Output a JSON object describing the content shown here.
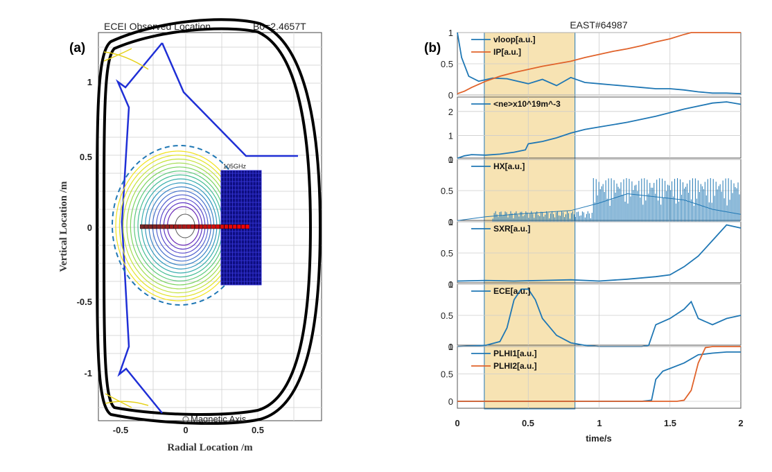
{
  "panel_a": {
    "label": "(a)",
    "title_left": "ECEI Observed Location",
    "title_right": "B0=2.4657T",
    "xlabel": "Radial Location  /m",
    "ylabel": "Vertical Location  /m",
    "xticks": [
      "-0.5",
      "0",
      "0.5"
    ],
    "yticks": [
      "1",
      "0.5",
      "0",
      "-0.5",
      "-1"
    ],
    "box_label": "105GHz",
    "annotation": "Magnetic Axis"
  },
  "panel_b": {
    "label": "(b)",
    "title": "EAST#64987",
    "xlabel": "time/s",
    "xticks": [
      "0",
      "0.5",
      "1",
      "1.5",
      "2"
    ]
  },
  "colors": {
    "blue": "#1f77b4",
    "orange": "#e0622a",
    "shade": "#f7e3b3",
    "wall_blue": "#1f2fd6"
  },
  "chart_data": [
    {
      "type": "line",
      "title": "ECEI Observed Location   B0=2.4657T",
      "xlabel": "Radial Location  /m",
      "ylabel": "Vertical Location  /m",
      "xlim": [
        -0.62,
        0.95
      ],
      "ylim": [
        -1.3,
        1.3
      ],
      "grid": true,
      "annotation": "Magnetic Axis",
      "channel_box": {
        "label": "105GHz",
        "r": [
          0.24,
          0.52
        ],
        "z": [
          -0.39,
          0.39
        ]
      }
    },
    {
      "type": "line",
      "title": "EAST#64987",
      "xlabel": "time/s",
      "xlim": [
        0,
        2
      ],
      "shaded_interval": [
        0.19,
        0.83
      ],
      "subplots": [
        {
          "ylim": [
            0,
            1
          ],
          "yticks": [
            "0",
            "0.5",
            "1"
          ],
          "series": [
            {
              "name": "vloop[a.u.]",
              "x": [
                0,
                0.03,
                0.08,
                0.15,
                0.25,
                0.35,
                0.5,
                0.6,
                0.7,
                0.8,
                0.9,
                1.0,
                1.1,
                1.2,
                1.3,
                1.4,
                1.5,
                1.6,
                1.7,
                1.8,
                1.9,
                2.0
              ],
              "y": [
                1.0,
                0.6,
                0.3,
                0.22,
                0.27,
                0.26,
                0.18,
                0.25,
                0.15,
                0.28,
                0.2,
                0.18,
                0.16,
                0.14,
                0.12,
                0.1,
                0.1,
                0.08,
                0.05,
                0.03,
                0.03,
                0.02
              ]
            },
            {
              "name": "IP[a.u.]",
              "x": [
                0,
                0.05,
                0.1,
                0.2,
                0.3,
                0.4,
                0.5,
                0.6,
                0.7,
                0.8,
                0.9,
                1.0,
                1.1,
                1.2,
                1.3,
                1.4,
                1.5,
                1.6,
                1.65,
                1.7,
                1.8,
                1.9,
                2.0
              ],
              "y": [
                0.02,
                0.06,
                0.12,
                0.22,
                0.3,
                0.36,
                0.41,
                0.46,
                0.5,
                0.54,
                0.6,
                0.65,
                0.7,
                0.74,
                0.79,
                0.85,
                0.9,
                0.97,
                1.0,
                1.0,
                1.0,
                1.0,
                1.0
              ]
            }
          ]
        },
        {
          "ylim": [
            0,
            2.4
          ],
          "yticks": [
            "0",
            "1",
            "2"
          ],
          "series": [
            {
              "name": "<ne>x10^19m^-3",
              "x": [
                0,
                0.05,
                0.1,
                0.2,
                0.3,
                0.4,
                0.48,
                0.5,
                0.55,
                0.6,
                0.7,
                0.8,
                0.9,
                1.0,
                1.2,
                1.4,
                1.6,
                1.8,
                1.9,
                2.0
              ],
              "y": [
                0.05,
                0.15,
                0.2,
                0.18,
                0.22,
                0.3,
                0.4,
                0.65,
                0.7,
                0.75,
                0.9,
                1.1,
                1.25,
                1.35,
                1.55,
                1.8,
                2.1,
                2.35,
                2.4,
                2.3
              ]
            }
          ]
        },
        {
          "ylim": [
            0,
            1
          ],
          "yticks": [
            "0",
            "0.5",
            "1"
          ],
          "series": [
            {
              "name": "HX[a.u.]",
              "x": [
                0,
                0.2,
                0.4,
                0.6,
                0.8,
                1.0,
                1.2,
                1.4,
                1.6,
                1.8,
                2.0
              ],
              "y": [
                0.02,
                0.08,
                0.12,
                0.15,
                0.18,
                0.3,
                0.45,
                0.4,
                0.35,
                0.2,
                0.12
              ]
            }
          ]
        },
        {
          "ylim": [
            0,
            1
          ],
          "yticks": [
            "0",
            "0.5",
            "1"
          ],
          "series": [
            {
              "name": "SXR[a.u.]",
              "x": [
                0,
                0.2,
                0.4,
                0.6,
                0.8,
                1.0,
                1.2,
                1.4,
                1.5,
                1.6,
                1.7,
                1.8,
                1.9,
                2.0
              ],
              "y": [
                0.05,
                0.06,
                0.05,
                0.06,
                0.07,
                0.05,
                0.08,
                0.12,
                0.15,
                0.28,
                0.45,
                0.7,
                0.95,
                0.9
              ]
            }
          ]
        },
        {
          "ylim": [
            0,
            1
          ],
          "yticks": [
            "0",
            "0.5",
            "1"
          ],
          "series": [
            {
              "name": "ECE[a.u.]",
              "x": [
                0,
                0.2,
                0.3,
                0.35,
                0.4,
                0.45,
                0.5,
                0.55,
                0.6,
                0.7,
                0.8,
                0.9,
                1.0,
                1.3,
                1.35,
                1.4,
                1.5,
                1.6,
                1.65,
                1.7,
                1.8,
                1.9,
                2.0
              ],
              "y": [
                0.0,
                0.02,
                0.08,
                0.3,
                0.75,
                0.92,
                0.92,
                0.75,
                0.45,
                0.18,
                0.06,
                0.02,
                0.0,
                0.0,
                0.02,
                0.35,
                0.45,
                0.6,
                0.72,
                0.45,
                0.35,
                0.45,
                0.5
              ]
            }
          ]
        },
        {
          "ylim": [
            0,
            1
          ],
          "yticks": [
            "0",
            "0.5",
            "1"
          ],
          "series": [
            {
              "name": "PLHI1[a.u.]",
              "x": [
                0,
                1.3,
                1.37,
                1.4,
                1.45,
                1.5,
                1.6,
                1.7,
                1.8,
                1.9,
                2.0
              ],
              "y": [
                0.0,
                0.0,
                0.02,
                0.4,
                0.55,
                0.6,
                0.7,
                0.85,
                0.88,
                0.9,
                0.9
              ]
            },
            {
              "name": "PLHI2[a.u.]",
              "x": [
                0,
                1.55,
                1.6,
                1.65,
                1.7,
                1.75,
                1.8,
                2.0
              ],
              "y": [
                0.0,
                0.0,
                0.02,
                0.2,
                0.7,
                0.98,
                1.0,
                1.0
              ]
            }
          ]
        }
      ]
    }
  ]
}
